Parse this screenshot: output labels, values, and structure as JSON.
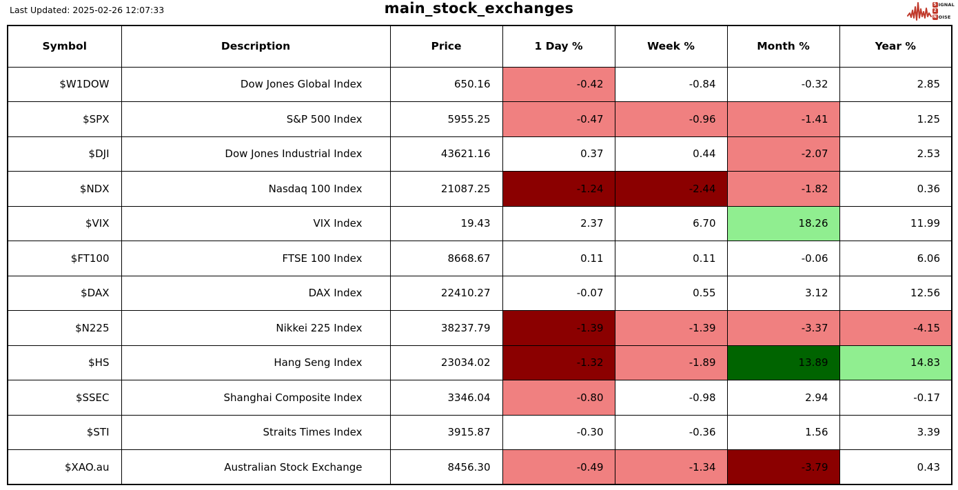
{
  "header": {
    "last_updated": "Last Updated: 2025-02-26 12:07:33",
    "logo": {
      "words": [
        {
          "badge": "S",
          "rest": "IGNAL"
        },
        {
          "badge": "2",
          "rest": ""
        },
        {
          "badge": "N",
          "rest": "OISE"
        }
      ]
    }
  },
  "colors": {
    "red_light": "#F08080",
    "red_dark": "#8B0000",
    "green_light": "#90EE90",
    "green_dark": "#006400",
    "logo_red": "#C0392B",
    "border": "#000000"
  },
  "chart_data": {
    "type": "table",
    "title": "main_stock_exchanges",
    "columns": [
      {
        "key": "symbol",
        "label": "Symbol"
      },
      {
        "key": "description",
        "label": "Description"
      },
      {
        "key": "price",
        "label": "Price"
      },
      {
        "key": "day",
        "label": "1 Day %"
      },
      {
        "key": "week",
        "label": "Week %"
      },
      {
        "key": "month",
        "label": "Month %"
      },
      {
        "key": "year",
        "label": "Year %"
      }
    ],
    "rows": [
      {
        "symbol": "$W1DOW",
        "description": "Dow Jones Global Index",
        "price": "650.16",
        "day": "-0.42",
        "week": "-0.84",
        "month": "-0.32",
        "year": "2.85",
        "highlights": {
          "day": "red_light"
        }
      },
      {
        "symbol": "$SPX",
        "description": "S&P 500 Index",
        "price": "5955.25",
        "day": "-0.47",
        "week": "-0.96",
        "month": "-1.41",
        "year": "1.25",
        "highlights": {
          "day": "red_light",
          "week": "red_light",
          "month": "red_light"
        }
      },
      {
        "symbol": "$DJI",
        "description": "Dow Jones Industrial Index",
        "price": "43621.16",
        "day": "0.37",
        "week": "0.44",
        "month": "-2.07",
        "year": "2.53",
        "highlights": {
          "month": "red_light"
        }
      },
      {
        "symbol": "$NDX",
        "description": "Nasdaq 100 Index",
        "price": "21087.25",
        "day": "-1.24",
        "week": "-2.44",
        "month": "-1.82",
        "year": "0.36",
        "highlights": {
          "day": "red_dark",
          "week": "red_dark",
          "month": "red_light"
        }
      },
      {
        "symbol": "$VIX",
        "description": "VIX Index",
        "price": "19.43",
        "day": "2.37",
        "week": "6.70",
        "month": "18.26",
        "year": "11.99",
        "highlights": {
          "month": "green_light"
        }
      },
      {
        "symbol": "$FT100",
        "description": "FTSE 100 Index",
        "price": "8668.67",
        "day": "0.11",
        "week": "0.11",
        "month": "-0.06",
        "year": "6.06",
        "highlights": {}
      },
      {
        "symbol": "$DAX",
        "description": "DAX Index",
        "price": "22410.27",
        "day": "-0.07",
        "week": "0.55",
        "month": "3.12",
        "year": "12.56",
        "highlights": {}
      },
      {
        "symbol": "$N225",
        "description": "Nikkei 225 Index",
        "price": "38237.79",
        "day": "-1.39",
        "week": "-1.39",
        "month": "-3.37",
        "year": "-4.15",
        "highlights": {
          "day": "red_dark",
          "week": "red_light",
          "month": "red_light",
          "year": "red_light"
        }
      },
      {
        "symbol": "$HS",
        "description": "Hang Seng Index",
        "price": "23034.02",
        "day": "-1.32",
        "week": "-1.89",
        "month": "13.89",
        "year": "14.83",
        "highlights": {
          "day": "red_dark",
          "week": "red_light",
          "month": "green_dark",
          "year": "green_light"
        }
      },
      {
        "symbol": "$SSEC",
        "description": "Shanghai Composite Index",
        "price": "3346.04",
        "day": "-0.80",
        "week": "-0.98",
        "month": "2.94",
        "year": "-0.17",
        "highlights": {
          "day": "red_light"
        }
      },
      {
        "symbol": "$STI",
        "description": "Straits Times Index",
        "price": "3915.87",
        "day": "-0.30",
        "week": "-0.36",
        "month": "1.56",
        "year": "3.39",
        "highlights": {}
      },
      {
        "symbol": "$XAO.au",
        "description": "Australian Stock Exchange",
        "price": "8456.30",
        "day": "-0.49",
        "week": "-1.34",
        "month": "-3.79",
        "year": "0.43",
        "highlights": {
          "day": "red_light",
          "week": "red_light",
          "month": "red_dark"
        }
      }
    ]
  }
}
